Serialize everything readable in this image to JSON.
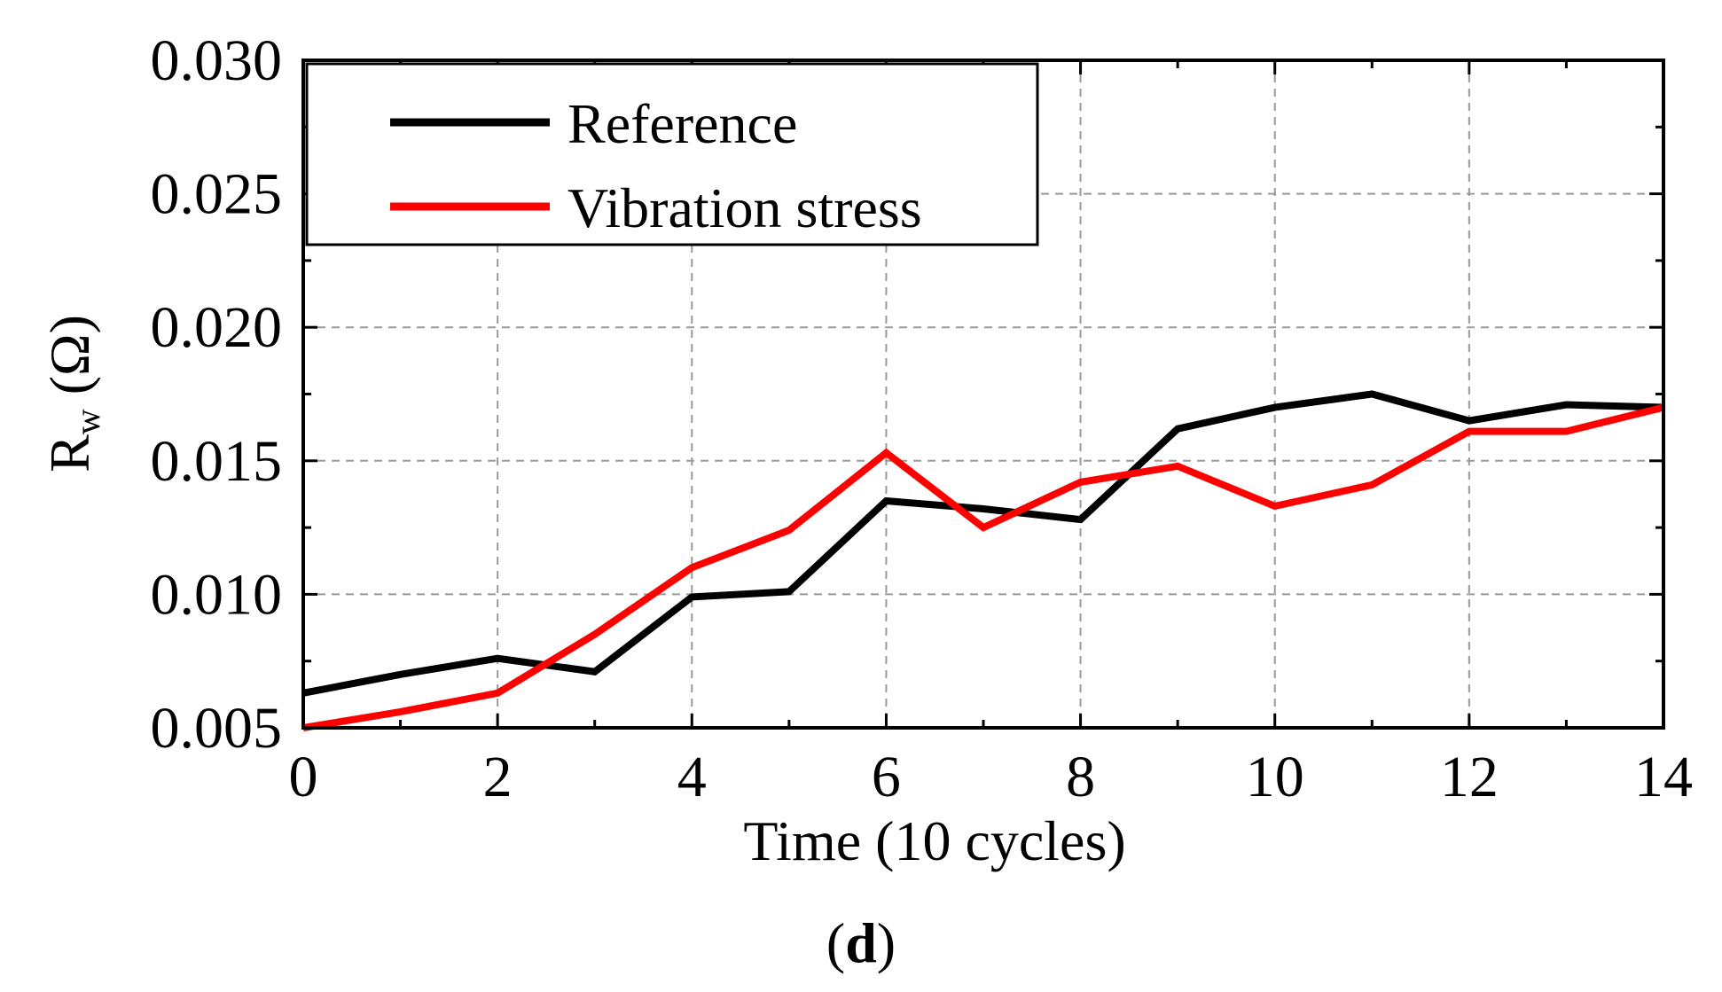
{
  "chart_data": {
    "type": "line",
    "x": [
      0,
      1,
      2,
      3,
      4,
      5,
      6,
      7,
      8,
      9,
      10,
      11,
      12,
      13,
      14
    ],
    "series": [
      {
        "name": "Reference",
        "color": "#000000",
        "values": [
          0.0063,
          0.007,
          0.0076,
          0.0071,
          0.0099,
          0.0101,
          0.0135,
          0.0132,
          0.0128,
          0.0162,
          0.017,
          0.0175,
          0.0165,
          0.0171,
          0.017
        ]
      },
      {
        "name": "Vibration stress",
        "color": "#ff0000",
        "values": [
          0.005,
          0.0056,
          0.0063,
          0.0085,
          0.011,
          0.0124,
          0.0153,
          0.0125,
          0.0142,
          0.0148,
          0.0133,
          0.0141,
          0.0161,
          0.0161,
          0.017
        ]
      }
    ],
    "xlim": [
      0,
      14
    ],
    "ylim": [
      0.005,
      0.03
    ],
    "xticks": [
      0,
      2,
      4,
      6,
      8,
      10,
      12,
      14
    ],
    "xtick_labels": [
      "0",
      "2",
      "4",
      "6",
      "8",
      "10",
      "12",
      "14"
    ],
    "yticks": [
      0.005,
      0.01,
      0.015,
      0.02,
      0.025,
      0.03
    ],
    "ytick_labels": [
      "0.005",
      "0.010",
      "0.015",
      "0.020",
      "0.025",
      "0.030"
    ],
    "xlabel": "Time (10 cycles)",
    "ylabel": {
      "main": "R",
      "subscript": "w",
      "unit": " (Ω)"
    },
    "title": "",
    "panel_label": {
      "open": "(",
      "letter": "d",
      "close": ")"
    },
    "grid": true,
    "legend_position": "top-left"
  }
}
